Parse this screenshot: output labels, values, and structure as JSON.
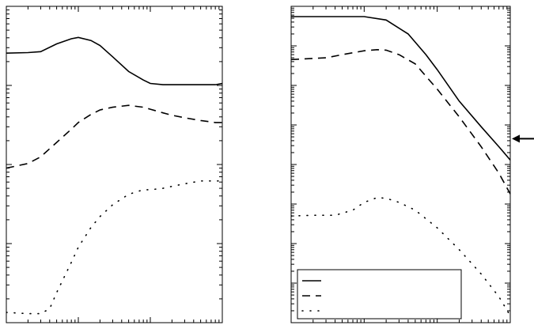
{
  "chart_data": [
    {
      "type": "line",
      "title": "",
      "xlabel": "",
      "ylabel": "",
      "xscale": "log",
      "yscale": "log",
      "xlim": [
        1,
        1000
      ],
      "ylim": [
        0.01,
        100
      ],
      "grid": false,
      "series": [
        {
          "style": "solid",
          "x": [
            1,
            2,
            3,
            5,
            8,
            10,
            15,
            20,
            30,
            50,
            80,
            100,
            150,
            200,
            300,
            500,
            800,
            1000
          ],
          "y": [
            25.6,
            26,
            26.7,
            33.5,
            38.9,
            40.5,
            37,
            32,
            23,
            15,
            11.7,
            10.6,
            10.2,
            10.2,
            10.2,
            10.2,
            10.2,
            10.6
          ]
        },
        {
          "style": "dashed",
          "x": [
            1,
            2,
            3,
            5,
            8,
            10,
            15,
            20,
            30,
            50,
            80,
            100,
            150,
            200,
            300,
            500,
            800,
            1000
          ],
          "y": [
            0.9,
            1.03,
            1.25,
            1.9,
            2.8,
            3.4,
            4.3,
            4.9,
            5.3,
            5.6,
            5.3,
            5.0,
            4.5,
            4.2,
            3.9,
            3.6,
            3.4,
            3.4
          ]
        },
        {
          "style": "dotted",
          "x": [
            1,
            2,
            3,
            4,
            5,
            8,
            10,
            15,
            20,
            30,
            50,
            80,
            100,
            150,
            200,
            300,
            500,
            800,
            1000
          ],
          "y": [
            0.0135,
            0.013,
            0.013,
            0.015,
            0.024,
            0.058,
            0.09,
            0.16,
            0.22,
            0.31,
            0.42,
            0.48,
            0.48,
            0.5,
            0.53,
            0.57,
            0.62,
            0.62,
            0.62
          ]
        }
      ]
    },
    {
      "type": "line",
      "title": "",
      "xlabel": "",
      "ylabel": "",
      "xscale": "log",
      "yscale": "log",
      "xlim": [
        1,
        1000
      ],
      "ylim": [
        1e-08,
        1
      ],
      "grid": false,
      "arrow_marker_value": 0.00045,
      "legend": {
        "entries": [
          "",
          "",
          ""
        ],
        "location": "lower-left"
      },
      "series": [
        {
          "style": "solid",
          "x": [
            1,
            2,
            5,
            10,
            20,
            40,
            70,
            100,
            200,
            400,
            700,
            1000
          ],
          "y": [
            0.55,
            0.55,
            0.55,
            0.55,
            0.45,
            0.2,
            0.06,
            0.025,
            0.004,
            0.0009,
            0.00028,
            0.00013
          ]
        },
        {
          "style": "dashed",
          "x": [
            1,
            3,
            5,
            10,
            15,
            20,
            30,
            50,
            100,
            200,
            400,
            700,
            1000
          ],
          "y": [
            0.045,
            0.05,
            0.06,
            0.075,
            0.08,
            0.078,
            0.06,
            0.035,
            0.008,
            0.0016,
            0.00028,
            6e-05,
            1.8e-05
          ]
        },
        {
          "style": "dotted",
          "x": [
            1,
            2,
            4,
            7,
            10,
            15,
            20,
            30,
            50,
            100,
            200,
            400,
            700,
            1000
          ],
          "y": [
            5e-06,
            5.2e-06,
            5.2e-06,
            7e-06,
            1.1e-05,
            1.45e-05,
            1.4e-05,
            1.1e-05,
            7e-06,
            2.5e-06,
            7e-07,
            1.7e-07,
            4.5e-08,
            1.5e-08
          ]
        }
      ]
    }
  ]
}
